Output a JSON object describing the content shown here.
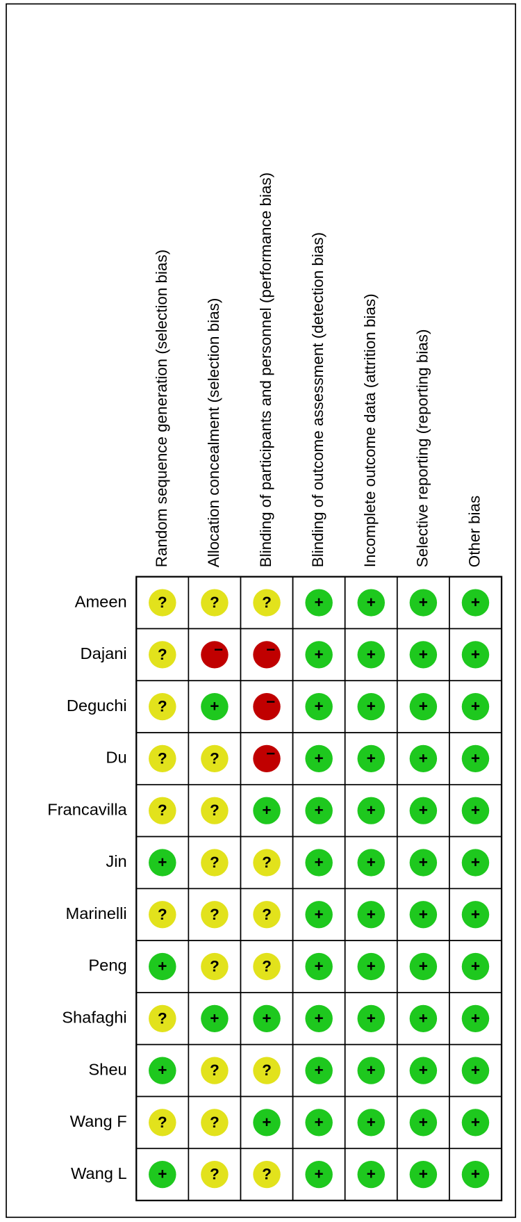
{
  "table": {
    "columns": [
      "Random sequence generation (selection bias)",
      "Allocation concealment (selection bias)",
      "Blinding of participants and personnel (performance bias)",
      "Blinding of outcome assessment (detection bias)",
      "Incomplete outcome data (attrition bias)",
      "Selective reporting (reporting bias)",
      "Other bias"
    ],
    "rows": [
      {
        "name": "Ameen",
        "cells": [
          "?",
          "?",
          "?",
          "+",
          "+",
          "+",
          "+"
        ]
      },
      {
        "name": "Dajani",
        "cells": [
          "?",
          "−",
          "−",
          "+",
          "+",
          "+",
          "+"
        ]
      },
      {
        "name": "Deguchi",
        "cells": [
          "?",
          "+",
          "−",
          "+",
          "+",
          "+",
          "+"
        ]
      },
      {
        "name": "Du",
        "cells": [
          "?",
          "?",
          "−",
          "+",
          "+",
          "+",
          "+"
        ]
      },
      {
        "name": "Francavilla",
        "cells": [
          "?",
          "?",
          "+",
          "+",
          "+",
          "+",
          "+"
        ]
      },
      {
        "name": "Jin",
        "cells": [
          "+",
          "?",
          "?",
          "+",
          "+",
          "+",
          "+"
        ]
      },
      {
        "name": "Marinelli",
        "cells": [
          "?",
          "?",
          "?",
          "+",
          "+",
          "+",
          "+"
        ]
      },
      {
        "name": "Peng",
        "cells": [
          "+",
          "?",
          "?",
          "+",
          "+",
          "+",
          "+"
        ]
      },
      {
        "name": "Shafaghi",
        "cells": [
          "?",
          "+",
          "+",
          "+",
          "+",
          "+",
          "+"
        ]
      },
      {
        "name": "Sheu",
        "cells": [
          "+",
          "?",
          "?",
          "+",
          "+",
          "+",
          "+"
        ]
      },
      {
        "name": "Wang F",
        "cells": [
          "?",
          "?",
          "+",
          "+",
          "+",
          "+",
          "+"
        ]
      },
      {
        "name": "Wang L",
        "cells": [
          "+",
          "?",
          "?",
          "+",
          "+",
          "+",
          "+"
        ]
      }
    ],
    "symbol_colors": {
      "+": "#1ec81e",
      "?": "#e2e21c",
      "−": "#c00000"
    }
  }
}
